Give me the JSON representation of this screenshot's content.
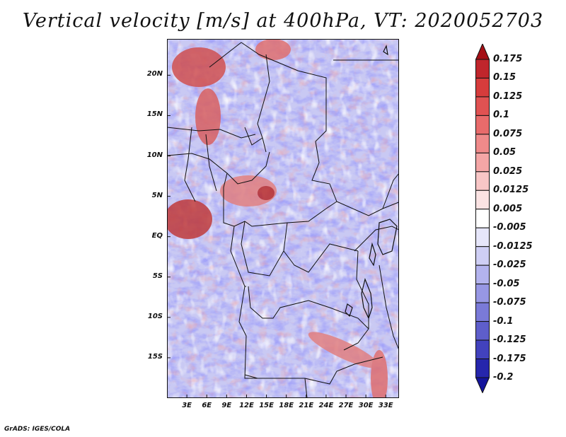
{
  "title": "Vertical velocity [m/s] at 400hPa, VT: 2020052703",
  "footer": "GrADS: IGES/COLA",
  "lat_labels": [
    "20N",
    "15N",
    "10N",
    "5N",
    "EQ",
    "5S",
    "10S",
    "15S"
  ],
  "lon_labels": [
    "3E",
    "6E",
    "9E",
    "12E",
    "15E",
    "18E",
    "21E",
    "24E",
    "27E",
    "30E",
    "33E"
  ],
  "colorbar": {
    "labels": [
      "0.175",
      "0.15",
      "0.125",
      "0.1",
      "0.075",
      "0.05",
      "0.025",
      "0.0125",
      "0.005",
      "-0.005",
      "-0.0125",
      "-0.025",
      "-0.05",
      "-0.075",
      "-0.1",
      "-0.125",
      "-0.175",
      "-0.2"
    ],
    "colors": [
      "#a50f15",
      "#c0262c",
      "#d63c3c",
      "#e05252",
      "#e86b6b",
      "#ef8a8a",
      "#f4a6a6",
      "#f8c6c6",
      "#fbe3e3",
      "#ffffff",
      "#e6e6fa",
      "#cfcff5",
      "#b3b3ee",
      "#9797e4",
      "#7a7ad8",
      "#5e5ecb",
      "#4242bd",
      "#2626ac",
      "#14149c"
    ]
  },
  "domain": {
    "lon_min": 0,
    "lon_max": 35,
    "lat_min": -20,
    "lat_max": 24.5
  }
}
